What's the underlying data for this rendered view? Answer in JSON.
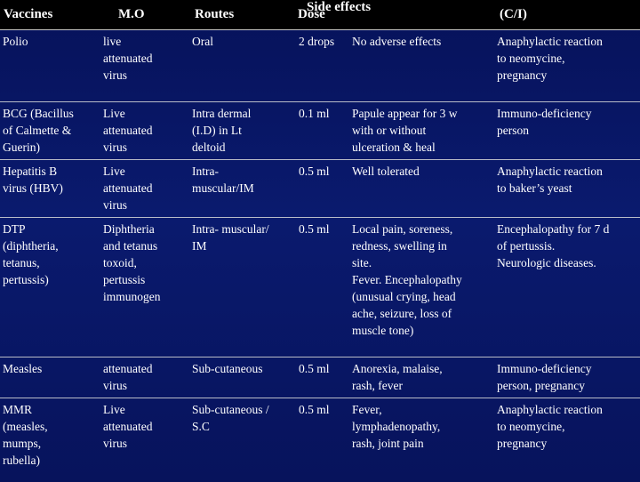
{
  "headers": {
    "vaccines": "Vaccines",
    "mo": "M.O",
    "routes": "Routes",
    "dose": "Dose",
    "side_effects": "Side effects",
    "ci": "(C/I)"
  },
  "rows": [
    {
      "vaccine": "Polio",
      "mo": "live\nattenuated\n virus",
      "route": "Oral",
      "dose": "2 drops",
      "side_effects": "No adverse effects",
      "ci": "Anaphylactic reaction\nto neomycine,\npregnancy"
    },
    {
      "vaccine": "BCG (Bacillus\nof Calmette &\n Guerin)",
      "mo": "Live\nattenuated\n virus",
      "route": "Intra dermal\n(I.D) in Lt\n deltoid",
      "dose": "0.1 ml",
      "side_effects": "Papule appear for 3 w\nwith or without\nulceration & heal",
      "ci": "Immuno-deficiency\n person"
    },
    {
      "vaccine": "Hepatitis B\n virus (HBV)",
      "mo": "Live\nattenuated\n virus",
      "route": "Intra-\n muscular/IM",
      "dose": "0.5 ml",
      "side_effects": " Well tolerated",
      "ci": "Anaphylactic reaction\n to  baker’s yeast"
    },
    {
      "vaccine": "DTP\n(diphtheria,\ntetanus,\n pertussis)",
      "mo": "Diphtheria\nand tetanus\ntoxoid,\npertussis\n immunogen",
      "route": "Intra- muscular/\n IM",
      "dose": "0.5 ml",
      "side_effects": "Local pain, soreness,\nredness, swelling in\nsite.\nFever. Encephalopathy\n(unusual crying, head\nache, seizure, loss of\n muscle tone)",
      "ci": "Encephalopathy for 7 d\n of pertussis.\nNeurologic diseases."
    },
    {
      "vaccine": " Measles",
      "mo": "attenuated\n virus",
      "route": " Sub-cutaneous",
      "dose": "0.5 ml",
      "side_effects": "Anorexia, malaise,\n rash, fever",
      "ci": "Immuno-deficiency\n person, pregnancy"
    },
    {
      "vaccine": "MMR\n(measles,\nmumps,\n rubella)",
      "mo": "Live\nattenuated\n virus",
      "route": "Sub-cutaneous /\n S.C",
      "dose": "0.5 ml",
      "side_effects": "Fever,\nlymphadenopathy,\n rash, joint pain",
      "ci": "Anaphylactic reaction\nto neomycine,\npregnancy"
    }
  ]
}
